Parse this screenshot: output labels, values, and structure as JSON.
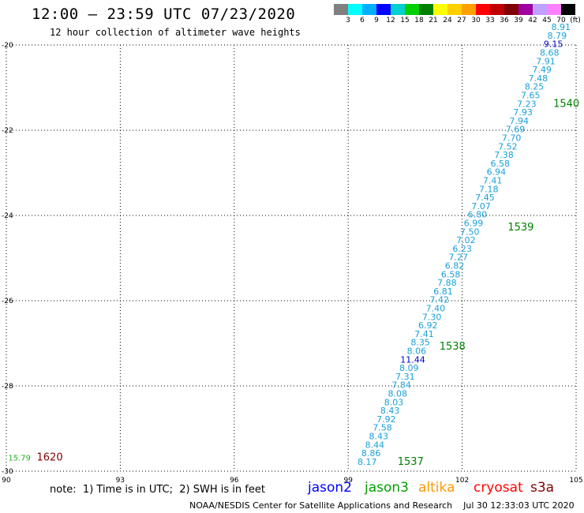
{
  "header": {
    "title": "12:00 – 23:59 UTC 07/23/2020",
    "subtitle": "12 hour collection of altimeter wave heights"
  },
  "legend": {
    "colors": [
      "#808080",
      "#00ffff",
      "#00b0ff",
      "#0000ff",
      "#00d0d0",
      "#00d000",
      "#008000",
      "#ffff00",
      "#ffd000",
      "#ffa000",
      "#ff0000",
      "#c00000",
      "#800000",
      "#a000a0",
      "#c0a0ff",
      "#ff80ff",
      "#000000"
    ],
    "labels": [
      "3",
      "6",
      "9",
      "12",
      "15",
      "18",
      "21",
      "24",
      "27",
      "30",
      "33",
      "36",
      "39",
      "42",
      "45",
      "70",
      "(ft)"
    ]
  },
  "map": {
    "lat_ticks": [
      "-20",
      "-22",
      "-24",
      "-26",
      "-28",
      "-30"
    ],
    "lon_ticks": [
      "90",
      "93",
      "96",
      "99",
      "102",
      "105"
    ],
    "lat_range": [
      -30,
      -20
    ],
    "lon_range": [
      90,
      105
    ]
  },
  "track": {
    "color": "#1aa0d8",
    "points": [
      {
        "v": "8.17",
        "lat": -29.85,
        "lon": 99.5,
        "c": "#1aa0d8"
      },
      {
        "v": "8.86",
        "lat": -29.65,
        "lon": 99.6,
        "c": "#1aa0d8"
      },
      {
        "v": "8.44",
        "lat": -29.45,
        "lon": 99.7,
        "c": "#1aa0d8"
      },
      {
        "v": "8.43",
        "lat": -29.25,
        "lon": 99.8,
        "c": "#1aa0d8"
      },
      {
        "v": "7.58",
        "lat": -29.05,
        "lon": 99.9,
        "c": "#1aa0d8"
      },
      {
        "v": "7.92",
        "lat": -28.85,
        "lon": 100.0,
        "c": "#1aa0d8"
      },
      {
        "v": "8.43",
        "lat": -28.65,
        "lon": 100.1,
        "c": "#1aa0d8"
      },
      {
        "v": "8.03",
        "lat": -28.45,
        "lon": 100.2,
        "c": "#1aa0d8"
      },
      {
        "v": "8.08",
        "lat": -28.25,
        "lon": 100.3,
        "c": "#1aa0d8"
      },
      {
        "v": "7.84",
        "lat": -28.05,
        "lon": 100.4,
        "c": "#1aa0d8"
      },
      {
        "v": "7.31",
        "lat": -27.85,
        "lon": 100.5,
        "c": "#1aa0d8"
      },
      {
        "v": "8.09",
        "lat": -27.65,
        "lon": 100.6,
        "c": "#1aa0d8"
      },
      {
        "v": "11.44",
        "lat": -27.45,
        "lon": 100.7,
        "c": "#0000cc"
      },
      {
        "v": "8.06",
        "lat": -27.25,
        "lon": 100.8,
        "c": "#1aa0d8"
      },
      {
        "v": "8.35",
        "lat": -27.05,
        "lon": 100.9,
        "c": "#1aa0d8"
      },
      {
        "v": "7.41",
        "lat": -26.85,
        "lon": 101.0,
        "c": "#1aa0d8"
      },
      {
        "v": "6.92",
        "lat": -26.65,
        "lon": 101.1,
        "c": "#1aa0d8"
      },
      {
        "v": "7.30",
        "lat": -26.45,
        "lon": 101.2,
        "c": "#1aa0d8"
      },
      {
        "v": "7.40",
        "lat": -26.25,
        "lon": 101.3,
        "c": "#1aa0d8"
      },
      {
        "v": "7.42",
        "lat": -26.05,
        "lon": 101.4,
        "c": "#1aa0d8"
      },
      {
        "v": "6.81",
        "lat": -25.85,
        "lon": 101.5,
        "c": "#1aa0d8"
      },
      {
        "v": "7.88",
        "lat": -25.65,
        "lon": 101.6,
        "c": "#1aa0d8"
      },
      {
        "v": "6.58",
        "lat": -25.45,
        "lon": 101.7,
        "c": "#1aa0d8"
      },
      {
        "v": "6.82",
        "lat": -25.25,
        "lon": 101.8,
        "c": "#1aa0d8"
      },
      {
        "v": "7.27",
        "lat": -25.05,
        "lon": 101.9,
        "c": "#1aa0d8"
      },
      {
        "v": "6.23",
        "lat": -24.85,
        "lon": 102.0,
        "c": "#1aa0d8"
      },
      {
        "v": "7.02",
        "lat": -24.65,
        "lon": 102.1,
        "c": "#1aa0d8"
      },
      {
        "v": "7.50",
        "lat": -24.45,
        "lon": 102.2,
        "c": "#1aa0d8"
      },
      {
        "v": "6.99",
        "lat": -24.25,
        "lon": 102.3,
        "c": "#1aa0d8"
      },
      {
        "v": "6.80",
        "lat": -24.05,
        "lon": 102.4,
        "c": "#1aa0d8"
      },
      {
        "v": "7.07",
        "lat": -23.85,
        "lon": 102.5,
        "c": "#1aa0d8"
      },
      {
        "v": "7.45",
        "lat": -23.65,
        "lon": 102.6,
        "c": "#1aa0d8"
      },
      {
        "v": "7.18",
        "lat": -23.45,
        "lon": 102.7,
        "c": "#1aa0d8"
      },
      {
        "v": "7.41",
        "lat": -23.25,
        "lon": 102.8,
        "c": "#1aa0d8"
      },
      {
        "v": "6.94",
        "lat": -23.05,
        "lon": 102.9,
        "c": "#1aa0d8"
      },
      {
        "v": "6.58",
        "lat": -22.85,
        "lon": 103.0,
        "c": "#1aa0d8"
      },
      {
        "v": "7.38",
        "lat": -22.65,
        "lon": 103.1,
        "c": "#1aa0d8"
      },
      {
        "v": "7.52",
        "lat": -22.45,
        "lon": 103.2,
        "c": "#1aa0d8"
      },
      {
        "v": "7.70",
        "lat": -22.25,
        "lon": 103.3,
        "c": "#1aa0d8"
      },
      {
        "v": "7.69",
        "lat": -22.05,
        "lon": 103.4,
        "c": "#1aa0d8"
      },
      {
        "v": "7.94",
        "lat": -21.85,
        "lon": 103.5,
        "c": "#1aa0d8"
      },
      {
        "v": "7.93",
        "lat": -21.65,
        "lon": 103.6,
        "c": "#1aa0d8"
      },
      {
        "v": "7.23",
        "lat": -21.45,
        "lon": 103.7,
        "c": "#1aa0d8"
      },
      {
        "v": "7.65",
        "lat": -21.25,
        "lon": 103.8,
        "c": "#1aa0d8"
      },
      {
        "v": "8.25",
        "lat": -21.05,
        "lon": 103.9,
        "c": "#1aa0d8"
      },
      {
        "v": "7.48",
        "lat": -20.85,
        "lon": 104.0,
        "c": "#1aa0d8"
      },
      {
        "v": "7.49",
        "lat": -20.65,
        "lon": 104.1,
        "c": "#1aa0d8"
      },
      {
        "v": "7.91",
        "lat": -20.45,
        "lon": 104.2,
        "c": "#1aa0d8"
      },
      {
        "v": "8.68",
        "lat": -20.25,
        "lon": 104.3,
        "c": "#1aa0d8"
      },
      {
        "v": "9.15",
        "lat": -20.05,
        "lon": 104.4,
        "c": "#0000cc"
      },
      {
        "v": "8.79",
        "lat": -19.85,
        "lon": 104.5,
        "c": "#1aa0d8"
      },
      {
        "v": "8.91",
        "lat": -19.65,
        "lon": 104.6,
        "c": "#1aa0d8"
      }
    ]
  },
  "time_labels": [
    {
      "text": "1537",
      "lat": -29.85,
      "lon": 100.3,
      "c": "#008000"
    },
    {
      "text": "1538",
      "lat": -27.15,
      "lon": 101.4,
      "c": "#008000"
    },
    {
      "text": "1539",
      "lat": -24.35,
      "lon": 103.2,
      "c": "#008000"
    },
    {
      "text": "1540",
      "lat": -21.45,
      "lon": 104.4,
      "c": "#008000"
    },
    {
      "text": "1620",
      "lat": -29.75,
      "lon": 90.8,
      "c": "#800000"
    }
  ],
  "extra_points": [
    {
      "v": "15.79",
      "lat": -29.75,
      "lon": 90.05,
      "c": "#20b020"
    }
  ],
  "note": "note:  1) Time is in UTC;  2) SWH is in feet",
  "satellites": [
    {
      "name": "jason2",
      "color": "#0000ff"
    },
    {
      "name": "jason3",
      "color": "#00a000"
    },
    {
      "name": "altika",
      "color": "#ff9900"
    },
    {
      "name": "cryosat",
      "color": "#ff0000"
    },
    {
      "name": "s3a",
      "color": "#800000"
    }
  ],
  "footer": "NOAA/NESDIS Center for Satellite Applications and Research    Jul 30 12:33:03 UTC 2020"
}
